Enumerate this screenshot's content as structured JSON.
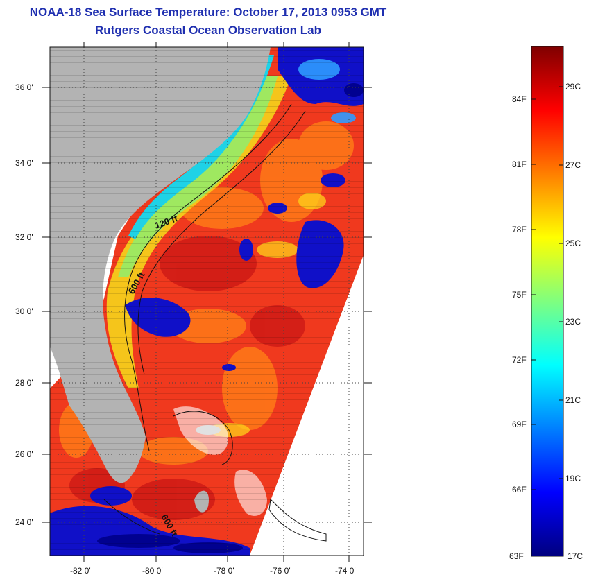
{
  "title": "NOAA-18 Sea Surface Temperature:  October 17, 2013 0953 GMT",
  "subtitle": "Rutgers Coastal Ocean Observation Lab",
  "map": {
    "lat_labels": [
      "36 0'",
      "34 0'",
      "32 0'",
      "30 0'",
      "28 0'",
      "26 0'",
      "24 0'"
    ],
    "lon_labels": [
      "-82 0'",
      "-80 0'",
      "-78 0'",
      "-76 0'",
      "-74 0'"
    ],
    "contour_labels": [
      "120 ft",
      "600 ft",
      "600 ft"
    ],
    "colors": {
      "land": "#b3b3b3",
      "grid": "#444444"
    }
  },
  "colorbar": {
    "f_labels": [
      "84F",
      "81F",
      "78F",
      "75F",
      "72F",
      "69F",
      "66F",
      "63F"
    ],
    "c_labels": [
      "29C",
      "27C",
      "25C",
      "23C",
      "21C",
      "19C",
      "17C"
    ],
    "min_c": 17,
    "max_c": 30,
    "colors": [
      "#00007f",
      "#0000ff",
      "#007fff",
      "#00ffff",
      "#7fff7f",
      "#ffff00",
      "#ff7f00",
      "#ff0000",
      "#7f0000"
    ]
  }
}
